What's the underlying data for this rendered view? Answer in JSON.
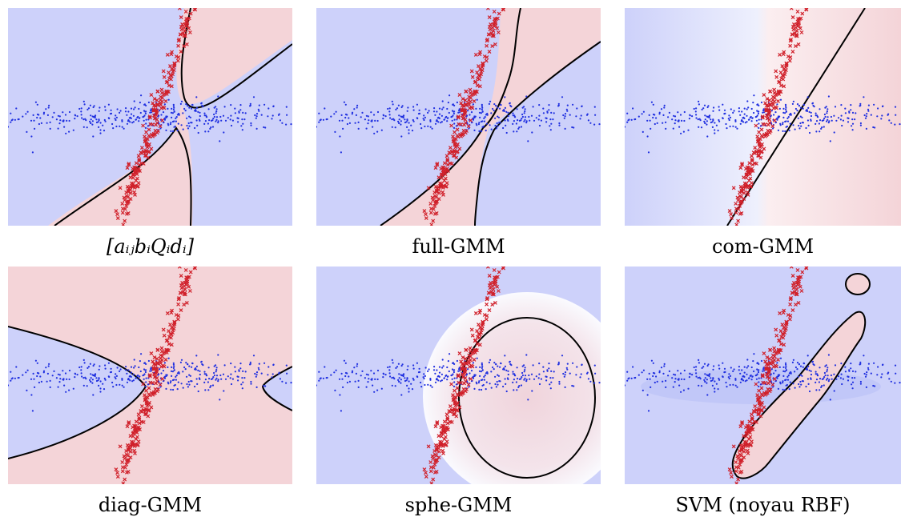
{
  "colors": {
    "class1_region": "#cdd1fa",
    "class2_region": "#f4d4d8",
    "boundary": "#000000",
    "class1_points": "#2030e0",
    "class2_points": "#d0202a",
    "background": "#ffffff"
  },
  "chart_data": [
    {
      "type": "scatter",
      "title": "[aᵢⱼbᵢQᵢdᵢ]",
      "model": "parsimonious-hdda",
      "boundary_shape": "hyperbola-vertical",
      "series": [
        {
          "marker": "dot",
          "color": "#2030e0",
          "cluster": {
            "cx": 0,
            "cy": 0,
            "sx": 3.2,
            "sy": 0.35,
            "rho": 0,
            "n": 400
          }
        },
        {
          "marker": "cross",
          "color": "#d0202a",
          "cluster": {
            "cx": 0.2,
            "cy": 0,
            "sx": 1.3,
            "sy": 3.6,
            "rho": 0.96,
            "n": 300
          }
        }
      ],
      "xlim": [
        -6,
        6
      ],
      "ylim": [
        -4.5,
        4.5
      ],
      "grid": false
    },
    {
      "type": "scatter",
      "title": "full-GMM",
      "model": "full",
      "boundary_shape": "hyperbola-vertical-wavy",
      "series": [
        {
          "marker": "dot",
          "color": "#2030e0",
          "cluster": {
            "cx": 0,
            "cy": 0,
            "sx": 3.2,
            "sy": 0.35,
            "rho": 0,
            "n": 400
          }
        },
        {
          "marker": "cross",
          "color": "#d0202a",
          "cluster": {
            "cx": 0.2,
            "cy": 0,
            "sx": 1.3,
            "sy": 3.6,
            "rho": 0.96,
            "n": 300
          }
        }
      ],
      "xlim": [
        -6,
        6
      ],
      "ylim": [
        -4.5,
        4.5
      ],
      "grid": false
    },
    {
      "type": "scatter",
      "title": "com-GMM",
      "model": "common-covariance",
      "boundary_shape": "line",
      "series": [
        {
          "marker": "dot",
          "color": "#2030e0",
          "cluster": {
            "cx": 0,
            "cy": 0,
            "sx": 3.2,
            "sy": 0.35,
            "rho": 0,
            "n": 400
          }
        },
        {
          "marker": "cross",
          "color": "#d0202a",
          "cluster": {
            "cx": 0.2,
            "cy": 0,
            "sx": 1.3,
            "sy": 3.6,
            "rho": 0.96,
            "n": 300
          }
        }
      ],
      "xlim": [
        -6,
        6
      ],
      "ylim": [
        -4.5,
        4.5
      ],
      "grid": false
    },
    {
      "type": "scatter",
      "title": "diag-GMM",
      "model": "diagonal",
      "boundary_shape": "hyperbola-horizontal",
      "series": [
        {
          "marker": "dot",
          "color": "#2030e0",
          "cluster": {
            "cx": 0,
            "cy": 0,
            "sx": 3.2,
            "sy": 0.35,
            "rho": 0,
            "n": 400
          }
        },
        {
          "marker": "cross",
          "color": "#d0202a",
          "cluster": {
            "cx": 0.2,
            "cy": 0,
            "sx": 1.3,
            "sy": 3.6,
            "rho": 0.96,
            "n": 300
          }
        }
      ],
      "xlim": [
        -6,
        6
      ],
      "ylim": [
        -4.5,
        4.5
      ],
      "grid": false
    },
    {
      "type": "scatter",
      "title": "sphe-GMM",
      "model": "spherical",
      "boundary_shape": "circle",
      "series": [
        {
          "marker": "dot",
          "color": "#2030e0",
          "cluster": {
            "cx": 0,
            "cy": 0,
            "sx": 3.2,
            "sy": 0.35,
            "rho": 0,
            "n": 400
          }
        },
        {
          "marker": "cross",
          "color": "#d0202a",
          "cluster": {
            "cx": 0.2,
            "cy": 0,
            "sx": 1.3,
            "sy": 3.6,
            "rho": 0.96,
            "n": 300
          }
        }
      ],
      "xlim": [
        -6,
        6
      ],
      "ylim": [
        -4.5,
        4.5
      ],
      "grid": false
    },
    {
      "type": "scatter",
      "title": "SVM (noyau RBF)",
      "model": "svm-rbf",
      "boundary_shape": "tube",
      "series": [
        {
          "marker": "dot",
          "color": "#2030e0",
          "cluster": {
            "cx": 0,
            "cy": 0,
            "sx": 3.2,
            "sy": 0.35,
            "rho": 0,
            "n": 400
          }
        },
        {
          "marker": "cross",
          "color": "#d0202a",
          "cluster": {
            "cx": 0.2,
            "cy": 0,
            "sx": 1.3,
            "sy": 3.6,
            "rho": 0.96,
            "n": 300
          }
        }
      ],
      "xlim": [
        -6,
        6
      ],
      "ylim": [
        -4.5,
        4.5
      ],
      "grid": false
    }
  ]
}
